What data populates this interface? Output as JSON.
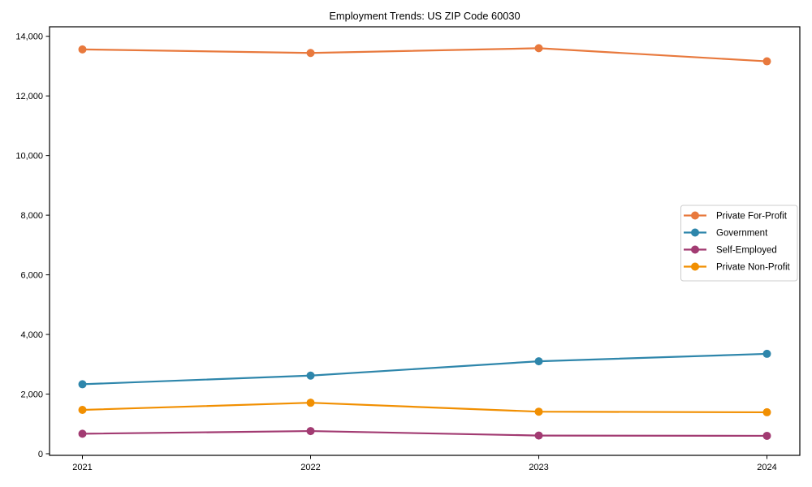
{
  "chart_data": {
    "type": "line",
    "title": "Employment Trends: US ZIP Code 60030",
    "x": [
      2021,
      2022,
      2023,
      2024
    ],
    "x_tick_labels": [
      "2021",
      "2022",
      "2023",
      "2024"
    ],
    "y_ticks": [
      0,
      2000,
      4000,
      6000,
      8000,
      10000,
      12000,
      14000
    ],
    "y_tick_labels": [
      "0",
      "2,000",
      "4,000",
      "6,000",
      "8,000",
      "10,000",
      "12,000",
      "14,000"
    ],
    "ylim": [
      0,
      14000
    ],
    "grid": false,
    "legend_position": "center right",
    "series": [
      {
        "name": "Private For-Profit",
        "color": "#E8793D",
        "values": [
          13560,
          13440,
          13600,
          13160
        ]
      },
      {
        "name": "Government",
        "color": "#2E86AB",
        "values": [
          2330,
          2620,
          3100,
          3350
        ]
      },
      {
        "name": "Self-Employed",
        "color": "#A23B72",
        "values": [
          670,
          760,
          610,
          600
        ]
      },
      {
        "name": "Private Non-Profit",
        "color": "#F18F01",
        "values": [
          1470,
          1710,
          1410,
          1390
        ]
      }
    ],
    "style": {
      "spine_color": "#000000",
      "legend_border_color": "#cccccc",
      "background": "#ffffff"
    }
  }
}
